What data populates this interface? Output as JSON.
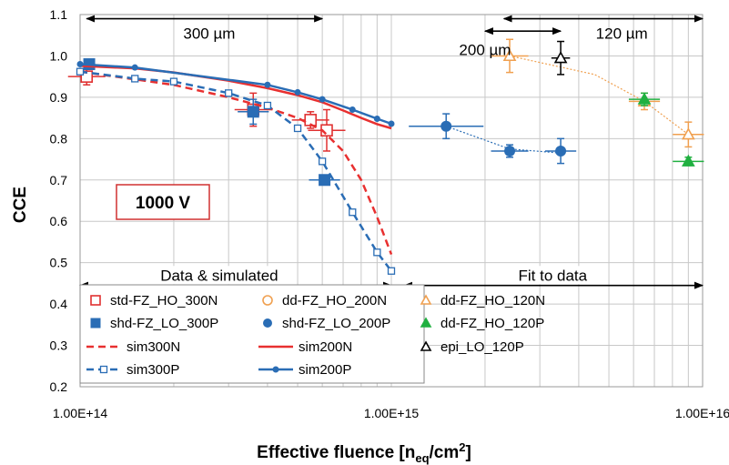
{
  "chart_data": {
    "type": "scatter",
    "xlabel": "Effective fluence [n",
    "xlabel_sub": "eq",
    "xlabel_mid": "/cm",
    "xlabel_sup": "2",
    "xlabel_end": "]",
    "ylabel": "CCE",
    "xscale": "log",
    "xlim": [
      100000000000000.0,
      1e+16
    ],
    "ylim": [
      0.2,
      1.1
    ],
    "x_ticks": [
      {
        "value": 100000000000000.0,
        "label": "1.00E+14"
      },
      {
        "value": 1000000000000000.0,
        "label": "1.00E+15"
      },
      {
        "value": 1e+16,
        "label": "1.00E+16"
      }
    ],
    "y_ticks": [
      {
        "value": 0.2,
        "label": "0.2"
      },
      {
        "value": 0.3,
        "label": "0.3"
      },
      {
        "value": 0.4,
        "label": "0.4"
      },
      {
        "value": 0.5,
        "label": "0.5"
      },
      {
        "value": 0.6,
        "label": "0.6"
      },
      {
        "value": 0.7,
        "label": "0.7"
      },
      {
        "value": 0.8,
        "label": "0.8"
      },
      {
        "value": 0.9,
        "label": "0.9"
      },
      {
        "value": 1.0,
        "label": "1.0"
      },
      {
        "value": 1.1,
        "label": "1.1"
      }
    ],
    "grid": true,
    "voltage_label": "1000 V",
    "annotations": [
      {
        "text": "300 µm",
        "x_from": 105000000000000.0,
        "x_to": 600000000000000.0,
        "y": 1.09,
        "label_x": 260000000000000.0,
        "label_y": 1.055
      },
      {
        "text": "200 µm",
        "x_from": 2000000000000000.0,
        "x_to": 3500000000000000.0,
        "y": 1.06,
        "label_x": 2000000000000000.0,
        "label_y": 1.015
      },
      {
        "text": "120 µm",
        "x_from": 2300000000000000.0,
        "x_to": 1e+16,
        "y": 1.09,
        "label_x": 5500000000000000.0,
        "label_y": 1.055
      },
      {
        "text": "Data & simulated",
        "x_from": 100000000000000.0,
        "x_to": 1000000000000000.0,
        "y": 0.445,
        "label_x": 280000000000000.0,
        "label_y": 0.47
      },
      {
        "text": "Fit to data",
        "x_from": 1100000000000000.0,
        "x_to": 1e+16,
        "y": 0.445,
        "label_x": 3300000000000000.0,
        "label_y": 0.47
      }
    ],
    "series": [
      {
        "name": "std-FZ_HO_300N",
        "kind": "marker",
        "marker": "square-open",
        "color": "#e03030",
        "points": [
          {
            "x": 105000000000000.0,
            "y": 0.95,
            "xerr": 0.06,
            "yerr": 0.02
          },
          {
            "x": 360000000000000.0,
            "y": 0.87,
            "xerr": 0.06,
            "yerr": 0.04
          },
          {
            "x": 550000000000000.0,
            "y": 0.845,
            "xerr": 0.06,
            "yerr": 0.02
          },
          {
            "x": 620000000000000.0,
            "y": 0.82,
            "xerr": 0.06,
            "yerr": 0.05
          }
        ]
      },
      {
        "name": "shd-FZ_LO_300P",
        "kind": "marker",
        "marker": "square-filled",
        "color": "#2a6db5",
        "points": [
          {
            "x": 107000000000000.0,
            "y": 0.98,
            "xerr": 0,
            "yerr": 0
          },
          {
            "x": 360000000000000.0,
            "y": 0.865,
            "xerr": 0.05,
            "yerr": 0.03
          },
          {
            "x": 610000000000000.0,
            "y": 0.7,
            "xerr": 0.05,
            "yerr": 0.01
          }
        ]
      },
      {
        "name": "sim300N",
        "kind": "line",
        "dash": true,
        "color": "#e83030",
        "points": [
          {
            "x": 100000000000000.0,
            "y": 0.962
          },
          {
            "x": 200000000000000.0,
            "y": 0.93
          },
          {
            "x": 300000000000000.0,
            "y": 0.9
          },
          {
            "x": 400000000000000.0,
            "y": 0.875
          },
          {
            "x": 500000000000000.0,
            "y": 0.85
          },
          {
            "x": 600000000000000.0,
            "y": 0.82
          },
          {
            "x": 700000000000000.0,
            "y": 0.77
          },
          {
            "x": 800000000000000.0,
            "y": 0.7
          },
          {
            "x": 900000000000000.0,
            "y": 0.61
          },
          {
            "x": 1000000000000000.0,
            "y": 0.52
          }
        ]
      },
      {
        "name": "sim300P",
        "kind": "line",
        "dash": true,
        "marker": "square-open-small",
        "color": "#2a6db5",
        "points": [
          {
            "x": 100000000000000.0,
            "y": 0.962
          },
          {
            "x": 150000000000000.0,
            "y": 0.945
          },
          {
            "x": 200000000000000.0,
            "y": 0.938
          },
          {
            "x": 300000000000000.0,
            "y": 0.91
          },
          {
            "x": 400000000000000.0,
            "y": 0.88
          },
          {
            "x": 500000000000000.0,
            "y": 0.825
          },
          {
            "x": 600000000000000.0,
            "y": 0.745
          },
          {
            "x": 750000000000000.0,
            "y": 0.622
          },
          {
            "x": 900000000000000.0,
            "y": 0.525
          },
          {
            "x": 1000000000000000.0,
            "y": 0.48
          }
        ]
      },
      {
        "name": "dd-FZ_HO_200N",
        "kind": "marker",
        "marker": "circle-open",
        "color": "#f0a050",
        "points": []
      },
      {
        "name": "shd-FZ_LO_200P",
        "kind": "marker",
        "marker": "circle-filled",
        "color": "#2a6db5",
        "points": [
          {
            "x": 1500000000000000.0,
            "y": 0.83,
            "xerr": 0.12,
            "yerr": 0.03
          },
          {
            "x": 2400000000000000.0,
            "y": 0.77,
            "xerr": 0.06,
            "yerr": 0.015
          },
          {
            "x": 3500000000000000.0,
            "y": 0.77,
            "xerr": 0.05,
            "yerr": 0.03
          }
        ]
      },
      {
        "name": "sim200N",
        "kind": "line",
        "dash": false,
        "color": "#e83030",
        "points": [
          {
            "x": 100000000000000.0,
            "y": 0.976
          },
          {
            "x": 150000000000000.0,
            "y": 0.97
          },
          {
            "x": 200000000000000.0,
            "y": 0.96
          },
          {
            "x": 300000000000000.0,
            "y": 0.94
          },
          {
            "x": 400000000000000.0,
            "y": 0.922
          },
          {
            "x": 500000000000000.0,
            "y": 0.905
          },
          {
            "x": 600000000000000.0,
            "y": 0.888
          },
          {
            "x": 700000000000000.0,
            "y": 0.868
          },
          {
            "x": 800000000000000.0,
            "y": 0.85
          },
          {
            "x": 900000000000000.0,
            "y": 0.835
          },
          {
            "x": 1000000000000000.0,
            "y": 0.825
          }
        ]
      },
      {
        "name": "sim200P",
        "kind": "line",
        "dash": false,
        "marker": "circle-filled-small",
        "color": "#2a6db5",
        "points": [
          {
            "x": 100000000000000.0,
            "y": 0.98
          },
          {
            "x": 150000000000000.0,
            "y": 0.972
          },
          {
            "x": 400000000000000.0,
            "y": 0.93
          },
          {
            "x": 500000000000000.0,
            "y": 0.912
          },
          {
            "x": 600000000000000.0,
            "y": 0.895
          },
          {
            "x": 750000000000000.0,
            "y": 0.87
          },
          {
            "x": 900000000000000.0,
            "y": 0.848
          },
          {
            "x": 1000000000000000.0,
            "y": 0.836
          }
        ]
      },
      {
        "name": "dd-FZ_HO_120N",
        "kind": "marker",
        "marker": "triangle-open",
        "color": "#f0a050",
        "points": [
          {
            "x": 2400000000000000.0,
            "y": 1.0,
            "xerr": 0.06,
            "yerr": 0.04
          },
          {
            "x": 6500000000000000.0,
            "y": 0.89,
            "xerr": 0.05,
            "yerr": 0.02
          },
          {
            "x": 9000000000000000.0,
            "y": 0.81,
            "xerr": 0.05,
            "yerr": 0.03
          }
        ]
      },
      {
        "name": "dd-FZ_HO_120P",
        "kind": "marker",
        "marker": "triangle-filled",
        "color": "#20b040",
        "points": [
          {
            "x": 6500000000000000.0,
            "y": 0.895,
            "xerr": 0.05,
            "yerr": 0.015
          },
          {
            "x": 9000000000000000.0,
            "y": 0.745,
            "xerr": 0.05,
            "yerr": 0.01
          }
        ]
      },
      {
        "name": "epi_LO_120P",
        "kind": "marker",
        "marker": "triangle-open",
        "color": "#000000",
        "points": [
          {
            "x": 3500000000000000.0,
            "y": 0.995,
            "xerr": 0.03,
            "yerr": 0.04
          }
        ]
      }
    ],
    "fits": [
      {
        "name": "fit-200P",
        "color": "#2a6db5",
        "points": [
          {
            "x": 1500000000000000.0,
            "y": 0.83
          },
          {
            "x": 2400000000000000.0,
            "y": 0.775
          },
          {
            "x": 3500000000000000.0,
            "y": 0.765
          }
        ]
      },
      {
        "name": "fit-120N",
        "color": "#f0a050",
        "points": [
          {
            "x": 2400000000000000.0,
            "y": 1.0
          },
          {
            "x": 4500000000000000.0,
            "y": 0.955
          },
          {
            "x": 6500000000000000.0,
            "y": 0.89
          },
          {
            "x": 9000000000000000.0,
            "y": 0.81
          }
        ]
      }
    ],
    "legend": [
      [
        "std-FZ_HO_300N",
        "dd-FZ_HO_200N",
        "dd-FZ_HO_120N"
      ],
      [
        "shd-FZ_LO_300P",
        "shd-FZ_LO_200P",
        "dd-FZ_HO_120P"
      ],
      [
        "sim300N",
        "sim200N",
        "epi_LO_120P"
      ],
      [
        "sim300P",
        "sim200P",
        ""
      ]
    ]
  }
}
